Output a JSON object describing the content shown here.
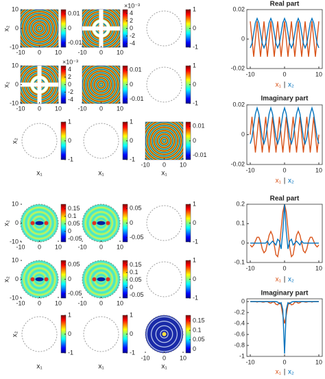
{
  "chart_data": [
    {
      "type": "rings",
      "xlim": [
        -10,
        10
      ],
      "ylim": [
        -10,
        10
      ],
      "xticks": [
        -10,
        0,
        10
      ],
      "yticks": [
        -10,
        0,
        10
      ],
      "ylabel": "x₂",
      "clim": [
        -0.013,
        0.013
      ],
      "cticks": [
        -0.01,
        0,
        0.01
      ]
    },
    {
      "type": "cross",
      "xlim": [
        -10,
        10
      ],
      "ylim": [
        -10,
        10
      ],
      "xticks": [
        -10,
        0,
        10
      ],
      "clim": [
        -5,
        5
      ],
      "cticks": [
        -4,
        -2,
        0,
        2,
        4
      ],
      "colorbar_exponent": "×10⁻³"
    },
    {
      "type": "blank",
      "clim": [
        -1,
        1
      ],
      "cticks": [
        -1,
        0,
        1
      ]
    },
    {
      "type": "cross",
      "xlim": [
        -10,
        10
      ],
      "ylim": [
        -10,
        10
      ],
      "xticks": [
        -10,
        0,
        10
      ],
      "yticks": [
        -10,
        0,
        10
      ],
      "ylabel": "x₂",
      "clim": [
        -5,
        5
      ],
      "cticks": [
        -4,
        -2,
        0,
        2,
        4
      ],
      "colorbar_exponent": "×10⁻³"
    },
    {
      "type": "rings",
      "xlim": [
        -10,
        10
      ],
      "ylim": [
        -10,
        10
      ],
      "xticks": [
        -10,
        0,
        10
      ],
      "clim": [
        -0.013,
        0.013
      ],
      "cticks": [
        -0.01,
        0,
        0.01
      ]
    },
    {
      "type": "blank",
      "clim": [
        -1,
        1
      ],
      "cticks": [
        -1,
        0,
        1
      ]
    },
    {
      "type": "blank",
      "ylabel": "x₂",
      "xlabel": "x₁",
      "clim": [
        -1,
        1
      ],
      "cticks": [
        -1,
        0,
        1
      ]
    },
    {
      "type": "blank",
      "xlabel": "x₁",
      "clim": [
        -1,
        1
      ],
      "cticks": [
        -1,
        0,
        1
      ]
    },
    {
      "type": "rings",
      "xlim": [
        -10,
        10
      ],
      "ylim": [
        -10,
        10
      ],
      "xticks": [
        -10,
        0,
        10
      ],
      "xlabel": "x₁",
      "clim": [
        -0.013,
        0.013
      ],
      "cticks": [
        -0.01,
        0,
        0.01
      ]
    },
    {
      "type": "spots",
      "xlim": [
        -10,
        10
      ],
      "ylim": [
        -10,
        10
      ],
      "xticks": [
        -10,
        0,
        10
      ],
      "yticks": [
        -10,
        0,
        10
      ],
      "ylabel": "x₂",
      "clim": [
        -0.07,
        0.18
      ],
      "cticks": [
        -0.05,
        0,
        0.05,
        0.1,
        0.15
      ]
    },
    {
      "type": "spots",
      "xlim": [
        -10,
        10
      ],
      "ylim": [
        -10,
        10
      ],
      "xticks": [
        -10,
        0,
        10
      ],
      "clim": [
        -0.065,
        0.065
      ],
      "cticks": [
        -0.05,
        0,
        0.05
      ]
    },
    {
      "type": "blank",
      "clim": [
        -1,
        1
      ],
      "cticks": [
        -1,
        0,
        1
      ]
    },
    {
      "type": "spots",
      "xlim": [
        -10,
        10
      ],
      "ylim": [
        -10,
        10
      ],
      "xticks": [
        -10,
        0,
        10
      ],
      "yticks": [
        -10,
        0,
        10
      ],
      "ylabel": "x₂",
      "clim": [
        -0.065,
        0.065
      ],
      "cticks": [
        -0.05,
        0,
        0.05
      ]
    },
    {
      "type": "spots",
      "xlim": [
        -10,
        10
      ],
      "ylim": [
        -10,
        10
      ],
      "xticks": [
        -10,
        0,
        10
      ],
      "clim": [
        -0.07,
        0.18
      ],
      "cticks": [
        -0.05,
        0,
        0.05,
        0.1,
        0.15
      ]
    },
    {
      "type": "blank",
      "clim": [
        -1,
        1
      ],
      "cticks": [
        -1,
        0,
        1
      ]
    },
    {
      "type": "blank",
      "ylabel": "x₂",
      "xlabel": "x₁",
      "clim": [
        -1,
        1
      ],
      "cticks": [
        -1,
        0,
        1
      ]
    },
    {
      "type": "blank",
      "xlabel": "x₁",
      "clim": [
        -1,
        1
      ],
      "cticks": [
        -1,
        0,
        1
      ]
    },
    {
      "type": "disk",
      "xlim": [
        -10,
        10
      ],
      "ylim": [
        -10,
        10
      ],
      "xticks": [
        -10,
        0,
        10
      ],
      "xlabel": "x₁",
      "clim": [
        -0.02,
        0.18
      ],
      "cticks": [
        0,
        0.05,
        0.1,
        0.15
      ]
    },
    {
      "type": "line",
      "title": "Real part",
      "separator": "|",
      "xlim": [
        -11,
        11
      ],
      "ylim": [
        -0.02,
        0.02
      ],
      "xticks": [
        -10,
        0,
        10
      ],
      "yticks": [
        -0.02,
        0,
        0.02
      ],
      "x": [
        -10,
        -9.5,
        -9,
        -8.5,
        -8,
        -7.5,
        -7,
        -6.5,
        -6,
        -5.5,
        -5,
        -4.5,
        -4,
        -3.5,
        -3,
        -2.5,
        -2,
        -1.5,
        -1,
        -0.5,
        0,
        0.5,
        1,
        1.5,
        2,
        2.5,
        3,
        3.5,
        4,
        4.5,
        5,
        5.5,
        6,
        6.5,
        7,
        7.5,
        8,
        8.5,
        9,
        9.5,
        10
      ],
      "series": [
        {
          "name": "x₁",
          "color": "#d95319",
          "values": [
            0.012,
            0,
            -0.012,
            0,
            0.012,
            0,
            -0.012,
            0,
            0.012,
            0,
            -0.012,
            0,
            0.012,
            0,
            -0.012,
            0,
            0.012,
            0,
            -0.012,
            0,
            0.012,
            0,
            -0.012,
            0,
            0.012,
            0,
            -0.012,
            0,
            0.012,
            0,
            -0.012,
            0,
            0.012,
            0,
            -0.012,
            0,
            0.012,
            0,
            -0.012,
            0,
            0.012
          ]
        },
        {
          "name": "x₂",
          "color": "#0072bd",
          "values": [
            -0.006,
            -0.003,
            0.004,
            0.011,
            0.014,
            0.011,
            0.004,
            -0.003,
            -0.006,
            -0.003,
            0.004,
            0.011,
            0.014,
            0.011,
            0.004,
            -0.003,
            -0.006,
            -0.003,
            0.004,
            0.011,
            0.014,
            0.011,
            0.004,
            -0.003,
            -0.006,
            -0.003,
            0.004,
            0.011,
            0.014,
            0.011,
            0.004,
            -0.003,
            -0.006,
            -0.003,
            0.004,
            0.011,
            0.014,
            0.011,
            0.004,
            -0.003,
            -0.006
          ]
        }
      ]
    },
    {
      "type": "line",
      "title": "Imaginary part",
      "separator": "|",
      "xlim": [
        -11,
        11
      ],
      "ylim": [
        -0.02,
        0.02
      ],
      "xticks": [
        -10,
        0,
        10
      ],
      "yticks": [
        -0.02,
        0,
        0.02
      ],
      "x": [
        -10,
        -9.5,
        -9,
        -8.5,
        -8,
        -7.5,
        -7,
        -6.5,
        -6,
        -5.5,
        -5,
        -4.5,
        -4,
        -3.5,
        -3,
        -2.5,
        -2,
        -1.5,
        -1,
        -0.5,
        0,
        0.5,
        1,
        1.5,
        2,
        2.5,
        3,
        3.5,
        4,
        4.5,
        5,
        5.5,
        6,
        6.5,
        7,
        7.5,
        8,
        8.5,
        9,
        9.5,
        10
      ],
      "series": [
        {
          "name": "x₁",
          "color": "#d95319",
          "values": [
            0,
            0.012,
            0,
            -0.012,
            0,
            0.012,
            0,
            -0.012,
            0,
            0.012,
            0,
            -0.012,
            0,
            0.012,
            0,
            -0.012,
            0,
            0.012,
            0,
            -0.012,
            0,
            0.012,
            0,
            -0.012,
            0,
            0.012,
            0,
            -0.012,
            0,
            0.012,
            0,
            -0.012,
            0,
            0.012,
            0,
            -0.012,
            0,
            0.012,
            0,
            -0.012,
            0
          ]
        },
        {
          "name": "x₂",
          "color": "#0072bd",
          "values": [
            -0.006,
            -0.002,
            0.006,
            0.014,
            0.018,
            0.014,
            0.006,
            -0.002,
            -0.006,
            -0.002,
            0.006,
            0.014,
            0.018,
            0.014,
            0.006,
            -0.002,
            -0.006,
            -0.002,
            0.006,
            0.014,
            0.018,
            0.014,
            0.006,
            -0.002,
            -0.006,
            -0.002,
            0.006,
            0.014,
            0.018,
            0.014,
            0.006,
            -0.002,
            -0.006,
            -0.002,
            0.006,
            0.014,
            0.018,
            0.014,
            0.006,
            -0.002,
            -0.006
          ]
        }
      ]
    },
    {
      "type": "line",
      "title": "Real part",
      "separator": "|",
      "xlim": [
        -11,
        11
      ],
      "ylim": [
        -0.1,
        0.2
      ],
      "xticks": [
        -10,
        0,
        10
      ],
      "yticks": [
        -0.1,
        0,
        0.1,
        0.2
      ],
      "x": [
        -10,
        -9.5,
        -9,
        -8.5,
        -8,
        -7.5,
        -7,
        -6.5,
        -6,
        -5.5,
        -5,
        -4.5,
        -4,
        -3.5,
        -3,
        -2.5,
        -2,
        -1.5,
        -1,
        -0.5,
        0,
        0.5,
        1,
        1.5,
        2,
        2.5,
        3,
        3.5,
        4,
        4.5,
        5,
        5.5,
        6,
        6.5,
        7,
        7.5,
        8,
        8.5,
        9,
        9.5,
        10
      ],
      "series": [
        {
          "name": "x₁",
          "color": "#d95319",
          "values": [
            -0.01,
            -0.02,
            -0.01,
            0.01,
            0.03,
            0.03,
            0.01,
            -0.03,
            -0.05,
            -0.04,
            0,
            0.04,
            0.06,
            0.04,
            -0.01,
            -0.06,
            -0.07,
            -0.02,
            0.07,
            0.16,
            0.2,
            0.16,
            0.07,
            -0.02,
            -0.07,
            -0.06,
            -0.01,
            0.04,
            0.06,
            0.04,
            0,
            -0.04,
            -0.05,
            -0.03,
            0.01,
            0.03,
            0.03,
            0.01,
            -0.01,
            -0.02,
            -0.01
          ]
        },
        {
          "name": "x₂",
          "color": "#0072bd",
          "values": [
            0,
            0,
            0,
            0,
            0,
            0,
            0,
            0,
            0,
            0,
            0.01,
            -0.01,
            0,
            0.01,
            0,
            -0.01,
            0.02,
            0.01,
            -0.03,
            0.06,
            0.2,
            0.06,
            -0.03,
            0.01,
            0.02,
            -0.01,
            0,
            0.01,
            0,
            -0.01,
            0.01,
            0,
            0,
            0,
            0,
            0,
            0,
            0,
            0,
            0,
            0
          ]
        }
      ]
    },
    {
      "type": "line",
      "title": "Imaginary part",
      "separator": "|",
      "xlim": [
        -11,
        11
      ],
      "ylim": [
        -1,
        0.05
      ],
      "xticks": [
        -10,
        0,
        10
      ],
      "yticks": [
        -1,
        -0.8,
        -0.6,
        -0.4,
        -0.2,
        0
      ],
      "x": [
        -10,
        -9.5,
        -9,
        -8.5,
        -8,
        -7.5,
        -7,
        -6.5,
        -6,
        -5.5,
        -5,
        -4.5,
        -4,
        -3.5,
        -3,
        -2.5,
        -2,
        -1.5,
        -1,
        -0.5,
        0,
        0.5,
        1,
        1.5,
        2,
        2.5,
        3,
        3.5,
        4,
        4.5,
        5,
        5.5,
        6,
        6.5,
        7,
        7.5,
        8,
        8.5,
        9,
        9.5,
        10
      ],
      "series": [
        {
          "name": "x₁",
          "color": "#d95319",
          "values": [
            0,
            0,
            0,
            0,
            -0.01,
            0,
            0,
            -0.01,
            -0.01,
            0,
            0,
            -0.02,
            -0.03,
            -0.01,
            -0.01,
            -0.05,
            -0.06,
            -0.02,
            -0.06,
            -0.25,
            -0.4,
            -0.25,
            -0.06,
            -0.02,
            -0.06,
            -0.05,
            -0.01,
            -0.01,
            -0.03,
            -0.02,
            0,
            0,
            -0.01,
            -0.01,
            0,
            0,
            -0.01,
            0,
            0,
            0,
            0
          ]
        },
        {
          "name": "x₂",
          "color": "#0072bd",
          "values": [
            0,
            0,
            0,
            0,
            0,
            0,
            0,
            0,
            0,
            0,
            0,
            0,
            0,
            0,
            0,
            0,
            -0.01,
            -0.04,
            -0.02,
            -0.15,
            -0.95,
            -0.15,
            -0.02,
            -0.04,
            -0.01,
            0,
            0,
            0,
            0,
            0,
            0,
            0,
            0,
            0,
            0,
            0,
            0,
            0,
            0,
            0,
            0
          ]
        }
      ]
    }
  ]
}
